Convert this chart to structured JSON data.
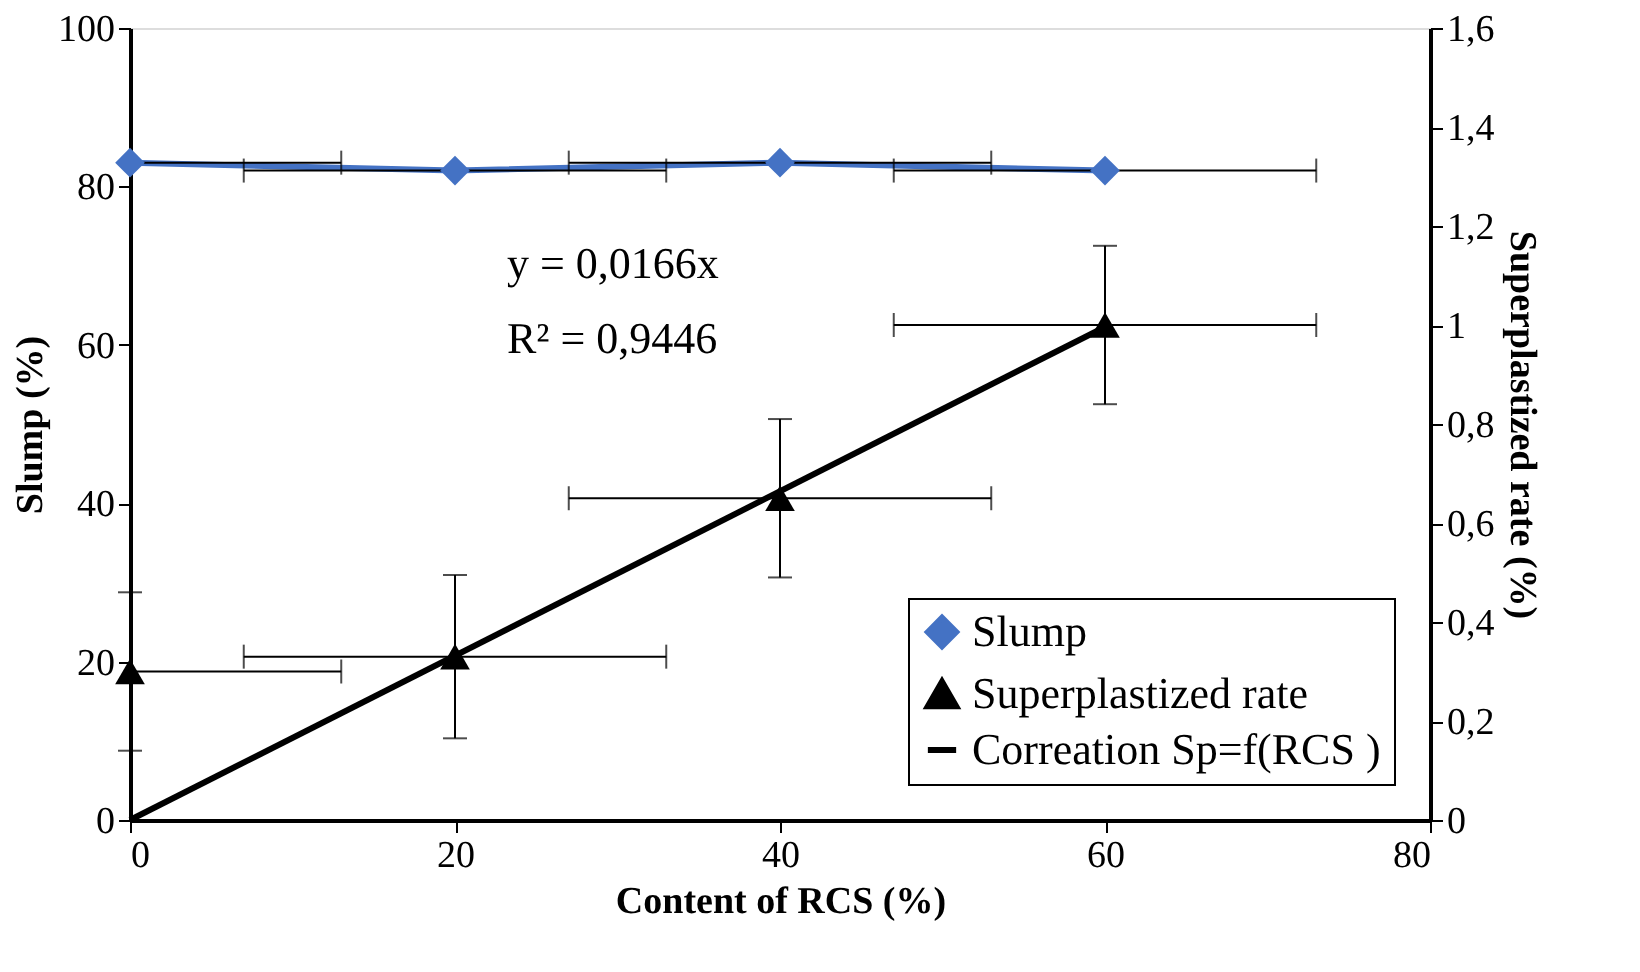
{
  "chart_data": {
    "type": "line",
    "xlabel": "Content of RCS (%)",
    "ylabel": "Slump (%)",
    "y2label": "Superplastized rate (%)",
    "x": [
      0,
      20,
      40,
      60
    ],
    "series": [
      {
        "name": "Slump",
        "color": "#4472c4",
        "marker": "diamond",
        "values": [
          83,
          82,
          83,
          82
        ],
        "xerrors": [
          [
            0,
            13
          ],
          13,
          13,
          13
        ]
      },
      {
        "name": "Superplastized rate",
        "type": "scatter",
        "axis": "y2",
        "color": "#000000",
        "marker": "triangle",
        "values": [
          0.3,
          0.33,
          0.65,
          1.0
        ],
        "errors": [
          0.16,
          0.165,
          0.16,
          0.16
        ],
        "xerrors": [
          [
            0,
            13
          ],
          13,
          13,
          13
        ]
      },
      {
        "name": "Correation Sp=f(RCS )",
        "type": "line",
        "axis": "y2",
        "color": "#000000",
        "marker": "none",
        "x": [
          0,
          60
        ],
        "values": [
          0,
          0.996
        ]
      }
    ],
    "xlim": [
      0,
      80
    ],
    "xticks": [
      0,
      20,
      40,
      60,
      80
    ],
    "ylim": [
      0,
      100
    ],
    "yticks": [
      0,
      20,
      40,
      60,
      80,
      100
    ],
    "y2lim": [
      0,
      1.6
    ],
    "y2ticks": [
      0,
      {
        "value": 0.2,
        "label": "0,2"
      },
      {
        "value": 0.4,
        "label": "0,4"
      },
      {
        "value": 0.6,
        "label": "0,6"
      },
      {
        "value": 0.8,
        "label": "0,8"
      },
      1,
      {
        "value": 1.2,
        "label": "1,2"
      },
      {
        "value": 1.4,
        "label": "1,4"
      },
      {
        "value": 1.6,
        "label": "1,6"
      }
    ],
    "annotations": [
      "y = 0,0166x",
      "R² = 0,9446"
    ],
    "grid": false,
    "legend": "bottom right"
  }
}
